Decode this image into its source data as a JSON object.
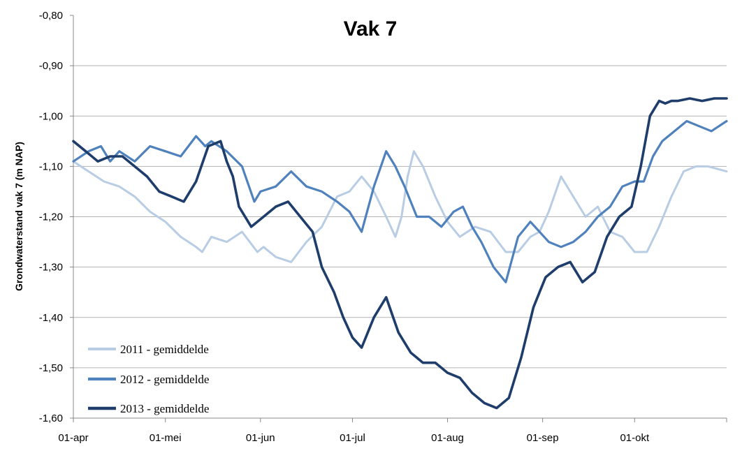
{
  "chart_data": {
    "type": "line",
    "title": "Vak 7",
    "xlabel": "",
    "ylabel": "Grondwaterstand  vak 7 (m NAP)",
    "xlim": [
      "2013-04-01",
      "2013-10-31"
    ],
    "ylim": [
      -1.6,
      -0.8
    ],
    "yticks": [
      -0.8,
      -0.9,
      -1.0,
      -1.1,
      -1.2,
      -1.3,
      -1.4,
      -1.5,
      -1.6
    ],
    "ytick_labels": [
      "-0,80",
      "-0,90",
      "-1,00",
      "-1,10",
      "-1,20",
      "-1,30",
      "-1,40",
      "-1,50",
      "-1,60"
    ],
    "xticks": [
      "2013-04-01",
      "2013-05-01",
      "2013-06-01",
      "2013-07-01",
      "2013-08-01",
      "2013-09-01",
      "2013-10-01"
    ],
    "xtick_labels": [
      "01-apr",
      "01-mei",
      "01-jun",
      "01-jul",
      "01-aug",
      "01-sep",
      "01-okt"
    ],
    "grid": "horizontal",
    "legend_position": "bottom-left",
    "colors": {
      "2011 - gemiddelde": "#b8cce4",
      "2012 - gemiddelde": "#4f81bd",
      "2013 - gemiddelde": "#1f3d6b"
    },
    "series": [
      {
        "name": "2011 - gemiddelde",
        "x": [
          "2013-04-01",
          "2013-04-06",
          "2013-04-11",
          "2013-04-16",
          "2013-04-21",
          "2013-04-26",
          "2013-05-01",
          "2013-05-06",
          "2013-05-11",
          "2013-05-13",
          "2013-05-16",
          "2013-05-21",
          "2013-05-26",
          "2013-05-31",
          "2013-06-02",
          "2013-06-06",
          "2013-06-11",
          "2013-06-16",
          "2013-06-21",
          "2013-06-26",
          "2013-06-30",
          "2013-07-04",
          "2013-07-08",
          "2013-07-12",
          "2013-07-15",
          "2013-07-17",
          "2013-07-19",
          "2013-07-21",
          "2013-07-24",
          "2013-07-28",
          "2013-08-01",
          "2013-08-05",
          "2013-08-10",
          "2013-08-15",
          "2013-08-20",
          "2013-08-24",
          "2013-08-28",
          "2013-08-31",
          "2013-09-03",
          "2013-09-07",
          "2013-09-11",
          "2013-09-15",
          "2013-09-19",
          "2013-09-23",
          "2013-09-27",
          "2013-10-01",
          "2013-10-05",
          "2013-10-09",
          "2013-10-13",
          "2013-10-17",
          "2013-10-21",
          "2013-10-25",
          "2013-10-31"
        ],
        "y": [
          -1.09,
          -1.11,
          -1.13,
          -1.14,
          -1.16,
          -1.19,
          -1.21,
          -1.24,
          -1.26,
          -1.27,
          -1.24,
          -1.25,
          -1.23,
          -1.27,
          -1.26,
          -1.28,
          -1.29,
          -1.25,
          -1.22,
          -1.16,
          -1.15,
          -1.12,
          -1.15,
          -1.2,
          -1.24,
          -1.2,
          -1.12,
          -1.07,
          -1.1,
          -1.16,
          -1.21,
          -1.24,
          -1.22,
          -1.23,
          -1.27,
          -1.27,
          -1.24,
          -1.23,
          -1.19,
          -1.12,
          -1.16,
          -1.2,
          -1.18,
          -1.23,
          -1.24,
          -1.27,
          -1.27,
          -1.22,
          -1.16,
          -1.11,
          -1.1,
          -1.1,
          -1.11
        ]
      },
      {
        "name": "2012 - gemiddelde",
        "x": [
          "2013-04-01",
          "2013-04-06",
          "2013-04-10",
          "2013-04-13",
          "2013-04-16",
          "2013-04-21",
          "2013-04-26",
          "2013-05-01",
          "2013-05-06",
          "2013-05-11",
          "2013-05-14",
          "2013-05-16",
          "2013-05-21",
          "2013-05-26",
          "2013-05-30",
          "2013-06-01",
          "2013-06-06",
          "2013-06-11",
          "2013-06-16",
          "2013-06-21",
          "2013-06-26",
          "2013-06-30",
          "2013-07-04",
          "2013-07-08",
          "2013-07-12",
          "2013-07-15",
          "2013-07-18",
          "2013-07-22",
          "2013-07-26",
          "2013-07-30",
          "2013-08-03",
          "2013-08-06",
          "2013-08-09",
          "2013-08-12",
          "2013-08-16",
          "2013-08-20",
          "2013-08-24",
          "2013-08-28",
          "2013-08-31",
          "2013-09-03",
          "2013-09-07",
          "2013-09-11",
          "2013-09-15",
          "2013-09-19",
          "2013-09-23",
          "2013-09-27",
          "2013-10-01",
          "2013-10-04",
          "2013-10-07",
          "2013-10-10",
          "2013-10-14",
          "2013-10-18",
          "2013-10-22",
          "2013-10-26",
          "2013-10-31"
        ],
        "y": [
          -1.09,
          -1.07,
          -1.06,
          -1.09,
          -1.07,
          -1.09,
          -1.06,
          -1.07,
          -1.08,
          -1.04,
          -1.06,
          -1.05,
          -1.07,
          -1.1,
          -1.17,
          -1.15,
          -1.14,
          -1.11,
          -1.14,
          -1.15,
          -1.17,
          -1.19,
          -1.23,
          -1.14,
          -1.07,
          -1.1,
          -1.14,
          -1.2,
          -1.2,
          -1.22,
          -1.19,
          -1.18,
          -1.22,
          -1.25,
          -1.3,
          -1.33,
          -1.24,
          -1.21,
          -1.23,
          -1.25,
          -1.26,
          -1.25,
          -1.23,
          -1.2,
          -1.18,
          -1.14,
          -1.13,
          -1.13,
          -1.08,
          -1.05,
          -1.03,
          -1.01,
          -1.02,
          -1.03,
          -1.01
        ]
      },
      {
        "name": "2013 - gemiddelde",
        "x": [
          "2013-04-01",
          "2013-04-05",
          "2013-04-09",
          "2013-04-13",
          "2013-04-17",
          "2013-04-21",
          "2013-04-25",
          "2013-04-29",
          "2013-05-03",
          "2013-05-07",
          "2013-05-11",
          "2013-05-15",
          "2013-05-19",
          "2013-05-21",
          "2013-05-23",
          "2013-05-25",
          "2013-05-29",
          "2013-06-02",
          "2013-06-06",
          "2013-06-10",
          "2013-06-14",
          "2013-06-18",
          "2013-06-21",
          "2013-06-25",
          "2013-06-28",
          "2013-07-01",
          "2013-07-04",
          "2013-07-08",
          "2013-07-12",
          "2013-07-16",
          "2013-07-20",
          "2013-07-24",
          "2013-07-28",
          "2013-07-30",
          "2013-08-01",
          "2013-08-05",
          "2013-08-09",
          "2013-08-13",
          "2013-08-17",
          "2013-08-21",
          "2013-08-25",
          "2013-08-29",
          "2013-08-31",
          "2013-09-02",
          "2013-09-06",
          "2013-09-10",
          "2013-09-14",
          "2013-09-18",
          "2013-09-22",
          "2013-09-26",
          "2013-09-30",
          "2013-10-03",
          "2013-10-06",
          "2013-10-09",
          "2013-10-11",
          "2013-10-13",
          "2013-10-15",
          "2013-10-19",
          "2013-10-23",
          "2013-10-27",
          "2013-10-31"
        ],
        "y": [
          -1.05,
          -1.07,
          -1.09,
          -1.08,
          -1.08,
          -1.1,
          -1.12,
          -1.15,
          -1.16,
          -1.17,
          -1.13,
          -1.06,
          -1.05,
          -1.09,
          -1.12,
          -1.18,
          -1.22,
          -1.2,
          -1.18,
          -1.17,
          -1.2,
          -1.23,
          -1.3,
          -1.35,
          -1.4,
          -1.44,
          -1.46,
          -1.4,
          -1.36,
          -1.43,
          -1.47,
          -1.49,
          -1.49,
          -1.5,
          -1.51,
          -1.52,
          -1.55,
          -1.57,
          -1.58,
          -1.56,
          -1.48,
          -1.38,
          -1.35,
          -1.32,
          -1.3,
          -1.29,
          -1.33,
          -1.31,
          -1.24,
          -1.2,
          -1.18,
          -1.1,
          -1.0,
          -0.97,
          -0.975,
          -0.97,
          -0.97,
          -0.965,
          -0.97,
          -0.965,
          -0.965
        ]
      }
    ]
  }
}
